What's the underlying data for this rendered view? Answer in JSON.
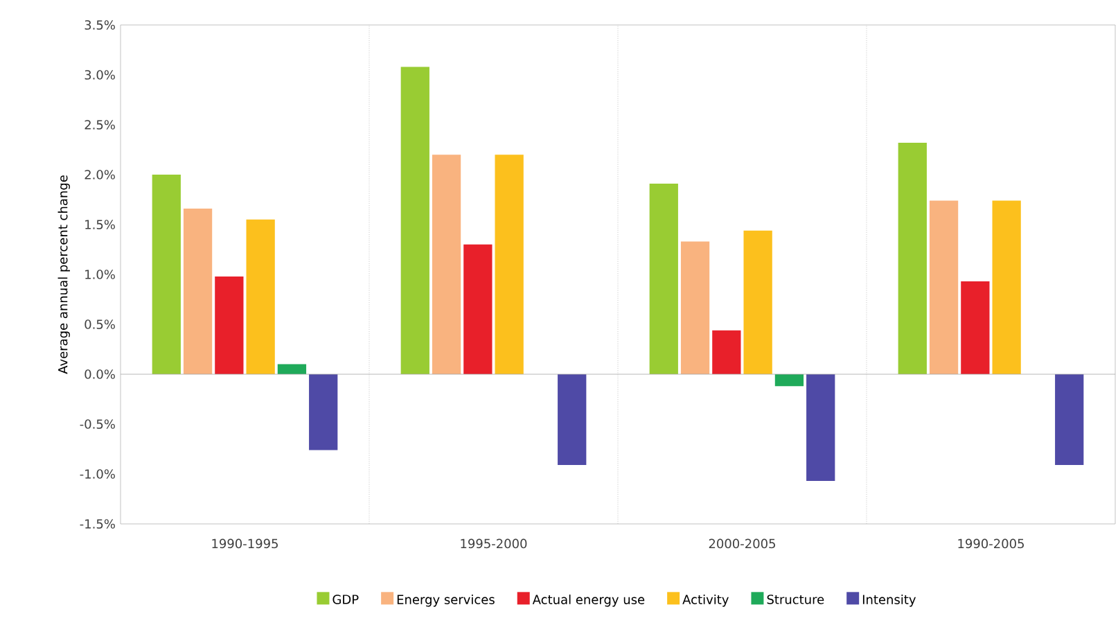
{
  "chart_data": {
    "type": "bar",
    "ylabel": "Average annual percent change",
    "categories": [
      "1990-1995",
      "1995-2000",
      "2000-2005",
      "1990-2005"
    ],
    "series": [
      {
        "name": "GDP",
        "color": "#99cc33",
        "values": [
          2.0,
          3.08,
          1.91,
          2.32
        ]
      },
      {
        "name": "Energy services",
        "color": "#f9b37f",
        "values": [
          1.66,
          2.2,
          1.33,
          1.74
        ]
      },
      {
        "name": "Actual energy use",
        "color": "#e8202a",
        "values": [
          0.98,
          1.3,
          0.44,
          0.93
        ]
      },
      {
        "name": "Activity",
        "color": "#fcc01d",
        "values": [
          1.55,
          2.2,
          1.44,
          1.74
        ]
      },
      {
        "name": "Structure",
        "color": "#1faa5a",
        "values": [
          0.1,
          null,
          -0.12,
          null
        ]
      },
      {
        "name": "Intensity",
        "color": "#4f4aa6",
        "values": [
          -0.76,
          -0.91,
          -1.07,
          -0.91
        ]
      }
    ],
    "ylim": [
      -1.5,
      3.5
    ],
    "yticks": [
      {
        "value": -1.5,
        "label": "-1.5%"
      },
      {
        "value": -1.0,
        "label": "-1.0%"
      },
      {
        "value": -0.5,
        "label": "-0.5%"
      },
      {
        "value": 0.0,
        "label": "0.0%"
      },
      {
        "value": 0.5,
        "label": "0.5%"
      },
      {
        "value": 1.0,
        "label": "1.0%"
      },
      {
        "value": 1.5,
        "label": "1.5%"
      },
      {
        "value": 2.0,
        "label": "2.0%"
      },
      {
        "value": 2.5,
        "label": "2.5%"
      },
      {
        "value": 3.0,
        "label": "3.0%"
      },
      {
        "value": 3.5,
        "label": "3.5%"
      }
    ],
    "grid": "x",
    "legend": "bottom"
  }
}
